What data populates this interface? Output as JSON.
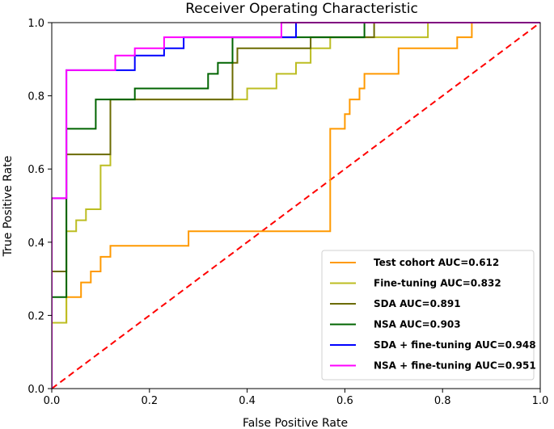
{
  "chart_data": {
    "type": "line",
    "title": "Receiver Operating Characteristic",
    "xlabel": "False Positive Rate",
    "ylabel": "True Positive Rate",
    "xlim": [
      0.0,
      1.0
    ],
    "ylim": [
      0.0,
      1.0
    ],
    "xticks": [
      "0.0",
      "0.2",
      "0.4",
      "0.6",
      "0.8",
      "1.0"
    ],
    "yticks": [
      "0.0",
      "0.2",
      "0.4",
      "0.6",
      "0.8",
      "1.0"
    ],
    "grid": false,
    "legend_position": "lower-right",
    "reference_line": {
      "color": "#ff0000",
      "style": "dashed",
      "points": [
        [
          0.0,
          0.0
        ],
        [
          1.0,
          1.0
        ]
      ]
    },
    "series": [
      {
        "name": "Test cohort AUC=0.612",
        "color": "#ff9900",
        "x": [
          0.0,
          0.0,
          0.03,
          0.03,
          0.06,
          0.06,
          0.08,
          0.08,
          0.1,
          0.1,
          0.12,
          0.12,
          0.28,
          0.28,
          0.57,
          0.57,
          0.6,
          0.6,
          0.61,
          0.61,
          0.63,
          0.63,
          0.64,
          0.64,
          0.71,
          0.71,
          0.8,
          0.8,
          0.83,
          0.83,
          0.86,
          0.86,
          1.0
        ],
        "y": [
          0.0,
          0.18,
          0.18,
          0.25,
          0.25,
          0.29,
          0.29,
          0.32,
          0.32,
          0.36,
          0.36,
          0.39,
          0.39,
          0.43,
          0.43,
          0.71,
          0.71,
          0.75,
          0.75,
          0.79,
          0.79,
          0.82,
          0.82,
          0.86,
          0.86,
          0.93,
          0.93,
          0.93,
          0.93,
          0.96,
          0.96,
          1.0,
          1.0
        ]
      },
      {
        "name": "Fine-tuning AUC=0.832",
        "color": "#bcbd22",
        "x": [
          0.0,
          0.0,
          0.03,
          0.03,
          0.05,
          0.05,
          0.07,
          0.07,
          0.1,
          0.1,
          0.12,
          0.12,
          0.13,
          0.13,
          0.4,
          0.4,
          0.46,
          0.46,
          0.5,
          0.5,
          0.53,
          0.53,
          0.57,
          0.57,
          0.77,
          0.77,
          1.0
        ],
        "y": [
          0.0,
          0.18,
          0.18,
          0.43,
          0.43,
          0.46,
          0.46,
          0.49,
          0.49,
          0.61,
          0.61,
          0.79,
          0.79,
          0.79,
          0.79,
          0.82,
          0.82,
          0.86,
          0.86,
          0.89,
          0.89,
          0.93,
          0.93,
          0.96,
          0.96,
          1.0,
          1.0
        ]
      },
      {
        "name": "SDA AUC=0.891",
        "color": "#6b6b00",
        "x": [
          0.0,
          0.0,
          0.03,
          0.03,
          0.12,
          0.12,
          0.37,
          0.37,
          0.38,
          0.38,
          0.53,
          0.53,
          0.63,
          0.63,
          0.66,
          0.66,
          1.0
        ],
        "y": [
          0.0,
          0.32,
          0.32,
          0.64,
          0.64,
          0.79,
          0.79,
          0.89,
          0.89,
          0.93,
          0.93,
          0.96,
          0.96,
          0.96,
          0.96,
          1.0,
          1.0
        ]
      },
      {
        "name": "NSA AUC=0.903",
        "color": "#006400",
        "x": [
          0.0,
          0.0,
          0.03,
          0.03,
          0.09,
          0.09,
          0.17,
          0.17,
          0.32,
          0.32,
          0.34,
          0.34,
          0.37,
          0.37,
          0.64,
          0.64,
          0.77,
          0.77,
          1.0
        ],
        "y": [
          0.0,
          0.25,
          0.25,
          0.71,
          0.71,
          0.79,
          0.79,
          0.82,
          0.82,
          0.86,
          0.86,
          0.89,
          0.89,
          0.96,
          0.96,
          1.0,
          1.0,
          1.0,
          1.0
        ]
      },
      {
        "name": "SDA + fine-tuning AUC=0.948",
        "color": "#0000ff",
        "x": [
          0.0,
          0.0,
          0.03,
          0.03,
          0.17,
          0.17,
          0.23,
          0.23,
          0.27,
          0.27,
          0.47,
          0.47,
          0.5,
          0.5,
          1.0
        ],
        "y": [
          0.0,
          0.52,
          0.52,
          0.87,
          0.87,
          0.91,
          0.91,
          0.93,
          0.93,
          0.96,
          0.96,
          0.96,
          0.96,
          1.0,
          1.0
        ]
      },
      {
        "name": "NSA + fine-tuning AUC=0.951",
        "color": "#ff00ff",
        "x": [
          0.0,
          0.0,
          0.03,
          0.03,
          0.13,
          0.13,
          0.17,
          0.17,
          0.23,
          0.23,
          0.47,
          0.47,
          1.0
        ],
        "y": [
          0.0,
          0.52,
          0.52,
          0.87,
          0.87,
          0.91,
          0.91,
          0.93,
          0.93,
          0.96,
          0.96,
          1.0,
          1.0
        ]
      }
    ]
  }
}
